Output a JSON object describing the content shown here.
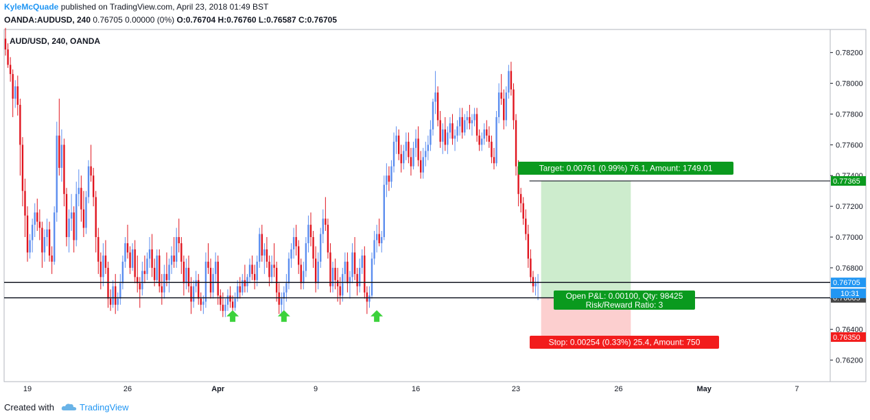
{
  "header": {
    "author": "KyleMcQuade",
    "published_text": " published on TradingView.com, April 23, 2018 01:49 BST",
    "symbol": "OANDA:AUDUSD, 240",
    "quote": " 0.76705 0.00000 (0%) ",
    "open": "O:0.76704",
    "high": "H:0.76760",
    "low": "L:0.76587",
    "close": "C:0.76705"
  },
  "chart_data": {
    "type": "candlestick",
    "title": "AUD/USD, 240, OANDA",
    "y_ticks": [
      "0.78200",
      "0.78000",
      "0.77800",
      "0.77600",
      "0.77400",
      "0.77200",
      "0.77000",
      "0.76800",
      "0.76600",
      "0.76400",
      "0.76200"
    ],
    "y_tick_values": [
      0.782,
      0.78,
      0.778,
      0.776,
      0.774,
      0.772,
      0.77,
      0.768,
      0.766,
      0.764,
      0.762
    ],
    "ylim": [
      0.7606,
      0.7835
    ],
    "x_ticks": [
      "19",
      "26",
      "Apr",
      "9",
      "16",
      "23",
      "26",
      "May",
      "7"
    ],
    "x_tick_bars": [
      9,
      50,
      87,
      127,
      168,
      209,
      251,
      286,
      324
    ],
    "bar_count": 330,
    "colors": {
      "up": "#5b8def",
      "down": "#e0141e",
      "target_fill": "#cdeccd",
      "stop_fill": "#fccfcf",
      "green_label": "#0a9a1e",
      "red_label": "#f21c1c"
    },
    "horizontal_lines": [
      {
        "price": 0.76705,
        "label": "0.76705",
        "label_color": "#2196f3"
      },
      {
        "price": 0.76605,
        "label": "0.76605",
        "label_color": "#444444"
      }
    ],
    "price_labels": [
      {
        "price": 0.77365,
        "label": "0.77365",
        "color": "#0a9a1e"
      },
      {
        "price": 0.7635,
        "label": "0.76350",
        "color": "#f21c1c"
      }
    ],
    "countdown": "10:31",
    "position": {
      "entry": 0.76605,
      "target": 0.77365,
      "stop": 0.7635,
      "start_bar": 219,
      "end_bar": 256,
      "target_text": "Target: 0.00761 (0.99%) 76.1, Amount: 1749.01",
      "open_text": "Open P&L: 0.00100, Qty: 98425",
      "rr_text": "Risk/Reward Ratio: 3",
      "stop_text": "Stop: 0.00254 (0.33%) 25.4, Amount: 750"
    },
    "arrows": [
      {
        "bar": 93,
        "price": 0.7648
      },
      {
        "bar": 114,
        "price": 0.7648
      },
      {
        "bar": 152,
        "price": 0.7648
      }
    ],
    "candles": [
      [
        0.7829,
        0.7836,
        0.7818,
        0.7822
      ],
      [
        0.7822,
        0.7826,
        0.781,
        0.7812
      ],
      [
        0.7812,
        0.7817,
        0.7801,
        0.7806
      ],
      [
        0.7806,
        0.7809,
        0.7778,
        0.779
      ],
      [
        0.779,
        0.7802,
        0.7784,
        0.7798
      ],
      [
        0.7798,
        0.7805,
        0.7779,
        0.7786
      ],
      [
        0.7786,
        0.779,
        0.774,
        0.776
      ],
      [
        0.776,
        0.7765,
        0.772,
        0.773
      ],
      [
        0.773,
        0.7738,
        0.77,
        0.7714
      ],
      [
        0.7714,
        0.772,
        0.7684,
        0.769
      ],
      [
        0.769,
        0.7702,
        0.7686,
        0.7698
      ],
      [
        0.7698,
        0.7712,
        0.769,
        0.7708
      ],
      [
        0.7708,
        0.7722,
        0.77,
        0.7716
      ],
      [
        0.7716,
        0.7725,
        0.7704,
        0.771
      ],
      [
        0.771,
        0.7718,
        0.7698,
        0.7706
      ],
      [
        0.7706,
        0.771,
        0.768,
        0.769
      ],
      [
        0.769,
        0.7705,
        0.7684,
        0.77
      ],
      [
        0.77,
        0.7712,
        0.7694,
        0.7705
      ],
      [
        0.7705,
        0.771,
        0.7684,
        0.7688
      ],
      [
        0.7688,
        0.7694,
        0.7676,
        0.7684
      ],
      [
        0.7684,
        0.772,
        0.7682,
        0.7716
      ],
      [
        0.7716,
        0.7775,
        0.771,
        0.7766
      ],
      [
        0.7766,
        0.779,
        0.774,
        0.7745
      ],
      [
        0.7745,
        0.777,
        0.7736,
        0.776
      ],
      [
        0.776,
        0.7764,
        0.772,
        0.7728
      ],
      [
        0.7728,
        0.7732,
        0.7694,
        0.77
      ],
      [
        0.77,
        0.7718,
        0.769,
        0.7712
      ],
      [
        0.7712,
        0.7728,
        0.7704,
        0.7716
      ],
      [
        0.7716,
        0.772,
        0.769,
        0.7698
      ],
      [
        0.7698,
        0.7736,
        0.7694,
        0.7728
      ],
      [
        0.7728,
        0.7744,
        0.772,
        0.7732
      ],
      [
        0.7732,
        0.774,
        0.771,
        0.7718
      ],
      [
        0.7718,
        0.773,
        0.77,
        0.7706
      ],
      [
        0.7706,
        0.773,
        0.7702,
        0.7726
      ],
      [
        0.7726,
        0.775,
        0.7722,
        0.7746
      ],
      [
        0.7746,
        0.776,
        0.7736,
        0.774
      ],
      [
        0.774,
        0.7745,
        0.772,
        0.7726
      ],
      [
        0.7726,
        0.773,
        0.769,
        0.77
      ],
      [
        0.77,
        0.7706,
        0.7676,
        0.7684
      ],
      [
        0.7684,
        0.769,
        0.7666,
        0.7674
      ],
      [
        0.7674,
        0.7696,
        0.7668,
        0.7688
      ],
      [
        0.7688,
        0.7698,
        0.7676,
        0.768
      ],
      [
        0.768,
        0.7684,
        0.7654,
        0.766
      ],
      [
        0.766,
        0.7666,
        0.7652,
        0.7656
      ],
      [
        0.7656,
        0.7672,
        0.7654,
        0.7668
      ],
      [
        0.7668,
        0.7676,
        0.765,
        0.7656
      ],
      [
        0.7656,
        0.7664,
        0.7652,
        0.766
      ],
      [
        0.766,
        0.7676,
        0.7656,
        0.767
      ],
      [
        0.767,
        0.7688,
        0.7666,
        0.7684
      ],
      [
        0.7684,
        0.77,
        0.768,
        0.7696
      ],
      [
        0.7696,
        0.7708,
        0.7686,
        0.769
      ],
      [
        0.769,
        0.7694,
        0.7676,
        0.768
      ],
      [
        0.768,
        0.7696,
        0.7678,
        0.7692
      ],
      [
        0.7692,
        0.7698,
        0.767,
        0.7674
      ],
      [
        0.7674,
        0.7688,
        0.7664,
        0.767
      ],
      [
        0.767,
        0.7674,
        0.7654,
        0.7666
      ],
      [
        0.7666,
        0.7684,
        0.7662,
        0.7678
      ],
      [
        0.7678,
        0.7688,
        0.767,
        0.7676
      ],
      [
        0.7676,
        0.769,
        0.7672,
        0.7686
      ],
      [
        0.7686,
        0.77,
        0.768,
        0.7692
      ],
      [
        0.7692,
        0.7702,
        0.7674,
        0.768
      ],
      [
        0.768,
        0.7686,
        0.7668,
        0.7672
      ],
      [
        0.7672,
        0.7692,
        0.767,
        0.7688
      ],
      [
        0.7688,
        0.7692,
        0.7664,
        0.7668
      ],
      [
        0.7668,
        0.7676,
        0.7656,
        0.7664
      ],
      [
        0.7664,
        0.7682,
        0.766,
        0.7676
      ],
      [
        0.7676,
        0.769,
        0.7668,
        0.7672
      ],
      [
        0.7672,
        0.7686,
        0.7664,
        0.7682
      ],
      [
        0.7682,
        0.7694,
        0.7676,
        0.7688
      ],
      [
        0.7688,
        0.77,
        0.768,
        0.7684
      ],
      [
        0.7684,
        0.7706,
        0.768,
        0.77
      ],
      [
        0.77,
        0.7712,
        0.769,
        0.7696
      ],
      [
        0.7696,
        0.77,
        0.7676,
        0.7684
      ],
      [
        0.7684,
        0.7688,
        0.7662,
        0.767
      ],
      [
        0.767,
        0.7686,
        0.7666,
        0.768
      ],
      [
        0.768,
        0.7688,
        0.7664,
        0.7668
      ],
      [
        0.7668,
        0.7674,
        0.765,
        0.7658
      ],
      [
        0.7658,
        0.7672,
        0.7654,
        0.7668
      ],
      [
        0.7668,
        0.7678,
        0.7664,
        0.7672
      ],
      [
        0.7672,
        0.7676,
        0.7656,
        0.766
      ],
      [
        0.766,
        0.7664,
        0.7652,
        0.7656
      ],
      [
        0.7656,
        0.7662,
        0.765,
        0.7658
      ],
      [
        0.7658,
        0.769,
        0.7654,
        0.7684
      ],
      [
        0.7684,
        0.7696,
        0.7676,
        0.768
      ],
      [
        0.768,
        0.7686,
        0.766,
        0.7664
      ],
      [
        0.7664,
        0.768,
        0.766,
        0.7676
      ],
      [
        0.7676,
        0.769,
        0.767,
        0.7684
      ],
      [
        0.7684,
        0.7688,
        0.7656,
        0.7662
      ],
      [
        0.7662,
        0.7666,
        0.7652,
        0.7656
      ],
      [
        0.7656,
        0.7664,
        0.7648,
        0.7652
      ],
      [
        0.7652,
        0.766,
        0.7648,
        0.7656
      ],
      [
        0.7656,
        0.7666,
        0.7652,
        0.7662
      ],
      [
        0.7662,
        0.7668,
        0.7654,
        0.7658
      ],
      [
        0.7658,
        0.7662,
        0.765,
        0.7654
      ],
      [
        0.7654,
        0.7664,
        0.7652,
        0.766
      ],
      [
        0.766,
        0.7672,
        0.7658,
        0.7668
      ],
      [
        0.7668,
        0.7674,
        0.766,
        0.7664
      ],
      [
        0.7664,
        0.7676,
        0.7662,
        0.7672
      ],
      [
        0.7672,
        0.7682,
        0.7664,
        0.7668
      ],
      [
        0.7668,
        0.7676,
        0.7664,
        0.7674
      ],
      [
        0.7674,
        0.7686,
        0.767,
        0.7682
      ],
      [
        0.7682,
        0.7688,
        0.7672,
        0.7676
      ],
      [
        0.7676,
        0.7682,
        0.7666,
        0.7672
      ],
      [
        0.7672,
        0.7688,
        0.7668,
        0.7684
      ],
      [
        0.7684,
        0.7706,
        0.768,
        0.7702
      ],
      [
        0.7702,
        0.7708,
        0.7684,
        0.7688
      ],
      [
        0.7688,
        0.7696,
        0.7676,
        0.7692
      ],
      [
        0.7692,
        0.77,
        0.768,
        0.7684
      ],
      [
        0.7684,
        0.7688,
        0.7668,
        0.7674
      ],
      [
        0.7674,
        0.7688,
        0.767,
        0.7682
      ],
      [
        0.7682,
        0.7696,
        0.7674,
        0.768
      ],
      [
        0.768,
        0.7684,
        0.7658,
        0.7664
      ],
      [
        0.7664,
        0.767,
        0.765,
        0.7656
      ],
      [
        0.7656,
        0.7664,
        0.765,
        0.766
      ],
      [
        0.766,
        0.7668,
        0.7652,
        0.7664
      ],
      [
        0.7664,
        0.7676,
        0.7658,
        0.767
      ],
      [
        0.767,
        0.769,
        0.7666,
        0.7686
      ],
      [
        0.7686,
        0.7696,
        0.768,
        0.7692
      ],
      [
        0.7692,
        0.7706,
        0.7686,
        0.77
      ],
      [
        0.77,
        0.7708,
        0.7688,
        0.7694
      ],
      [
        0.7694,
        0.7698,
        0.7676,
        0.7682
      ],
      [
        0.7682,
        0.7686,
        0.7666,
        0.767
      ],
      [
        0.767,
        0.7684,
        0.7666,
        0.7678
      ],
      [
        0.7678,
        0.77,
        0.7674,
        0.7696
      ],
      [
        0.7696,
        0.7714,
        0.769,
        0.7708
      ],
      [
        0.7708,
        0.7716,
        0.7694,
        0.77
      ],
      [
        0.77,
        0.7704,
        0.768,
        0.7686
      ],
      [
        0.7686,
        0.7694,
        0.7664,
        0.767
      ],
      [
        0.767,
        0.769,
        0.7666,
        0.7684
      ],
      [
        0.7684,
        0.7706,
        0.768,
        0.7702
      ],
      [
        0.7702,
        0.7718,
        0.7696,
        0.7712
      ],
      [
        0.7712,
        0.7726,
        0.7704,
        0.7708
      ],
      [
        0.7708,
        0.7712,
        0.7686,
        0.769
      ],
      [
        0.769,
        0.7696,
        0.7664,
        0.7668
      ],
      [
        0.7668,
        0.7684,
        0.7664,
        0.768
      ],
      [
        0.768,
        0.7686,
        0.7666,
        0.7672
      ],
      [
        0.7672,
        0.768,
        0.7658,
        0.7668
      ],
      [
        0.7668,
        0.7674,
        0.7656,
        0.7662
      ],
      [
        0.7662,
        0.768,
        0.7658,
        0.7676
      ],
      [
        0.7676,
        0.769,
        0.767,
        0.7684
      ],
      [
        0.7684,
        0.769,
        0.7664,
        0.767
      ],
      [
        0.767,
        0.7678,
        0.766,
        0.7674
      ],
      [
        0.7674,
        0.7696,
        0.767,
        0.769
      ],
      [
        0.769,
        0.77,
        0.7672,
        0.7676
      ],
      [
        0.7676,
        0.768,
        0.7662,
        0.7668
      ],
      [
        0.7668,
        0.7686,
        0.7664,
        0.768
      ],
      [
        0.768,
        0.7692,
        0.7676,
        0.7688
      ],
      [
        0.7688,
        0.7694,
        0.766,
        0.7664
      ],
      [
        0.7664,
        0.7668,
        0.765,
        0.7658
      ],
      [
        0.7658,
        0.7668,
        0.7654,
        0.7662
      ],
      [
        0.7662,
        0.769,
        0.766,
        0.7686
      ],
      [
        0.7686,
        0.7704,
        0.7682,
        0.7698
      ],
      [
        0.7698,
        0.7708,
        0.769,
        0.7702
      ],
      [
        0.7702,
        0.7712,
        0.7694,
        0.7696
      ],
      [
        0.7696,
        0.7704,
        0.769,
        0.77
      ],
      [
        0.77,
        0.774,
        0.7698,
        0.7734
      ],
      [
        0.7734,
        0.7748,
        0.7726,
        0.774
      ],
      [
        0.774,
        0.7746,
        0.773,
        0.7736
      ],
      [
        0.7736,
        0.775,
        0.7732,
        0.7746
      ],
      [
        0.7746,
        0.7768,
        0.7742,
        0.7762
      ],
      [
        0.7762,
        0.7772,
        0.7754,
        0.7766
      ],
      [
        0.7766,
        0.777,
        0.775,
        0.7754
      ],
      [
        0.7754,
        0.776,
        0.7742,
        0.7748
      ],
      [
        0.7748,
        0.776,
        0.7744,
        0.7756
      ],
      [
        0.7756,
        0.7768,
        0.775,
        0.7762
      ],
      [
        0.7762,
        0.7768,
        0.7748,
        0.7752
      ],
      [
        0.7752,
        0.7758,
        0.774,
        0.7746
      ],
      [
        0.7746,
        0.7762,
        0.7744,
        0.7758
      ],
      [
        0.7758,
        0.777,
        0.7752,
        0.7764
      ],
      [
        0.7764,
        0.7772,
        0.7746,
        0.775
      ],
      [
        0.775,
        0.7756,
        0.7738,
        0.7742
      ],
      [
        0.7742,
        0.7758,
        0.7738,
        0.7752
      ],
      [
        0.7752,
        0.7762,
        0.7746,
        0.7756
      ],
      [
        0.7756,
        0.7766,
        0.775,
        0.776
      ],
      [
        0.776,
        0.7776,
        0.7756,
        0.777
      ],
      [
        0.777,
        0.779,
        0.7766,
        0.7788
      ],
      [
        0.7788,
        0.7808,
        0.778,
        0.7794
      ],
      [
        0.7794,
        0.7798,
        0.7772,
        0.7776
      ],
      [
        0.7776,
        0.7782,
        0.7758,
        0.7762
      ],
      [
        0.7762,
        0.7774,
        0.7754,
        0.777
      ],
      [
        0.777,
        0.7778,
        0.7756,
        0.776
      ],
      [
        0.776,
        0.7772,
        0.7754,
        0.7768
      ],
      [
        0.7768,
        0.7778,
        0.7764,
        0.7774
      ],
      [
        0.7774,
        0.778,
        0.776,
        0.7764
      ],
      [
        0.7764,
        0.777,
        0.7756,
        0.7766
      ],
      [
        0.7766,
        0.7776,
        0.7762,
        0.7772
      ],
      [
        0.7772,
        0.7784,
        0.7766,
        0.7778
      ],
      [
        0.7778,
        0.7784,
        0.7764,
        0.7768
      ],
      [
        0.7768,
        0.778,
        0.7766,
        0.7776
      ],
      [
        0.7776,
        0.7782,
        0.777,
        0.7778
      ],
      [
        0.7778,
        0.7786,
        0.777,
        0.7774
      ],
      [
        0.7774,
        0.778,
        0.7766,
        0.7776
      ],
      [
        0.7776,
        0.7784,
        0.7772,
        0.778
      ],
      [
        0.778,
        0.7784,
        0.7762,
        0.7766
      ],
      [
        0.7766,
        0.777,
        0.7756,
        0.776
      ],
      [
        0.776,
        0.7768,
        0.7756,
        0.7764
      ],
      [
        0.7764,
        0.7774,
        0.776,
        0.777
      ],
      [
        0.777,
        0.7776,
        0.7762,
        0.7766
      ],
      [
        0.7766,
        0.7772,
        0.7758,
        0.7762
      ],
      [
        0.7762,
        0.7766,
        0.7748,
        0.7752
      ],
      [
        0.7752,
        0.7758,
        0.7744,
        0.7748
      ],
      [
        0.7748,
        0.7782,
        0.7746,
        0.7778
      ],
      [
        0.7778,
        0.78,
        0.7774,
        0.7794
      ],
      [
        0.7794,
        0.7806,
        0.7786,
        0.779
      ],
      [
        0.779,
        0.7796,
        0.777,
        0.7776
      ],
      [
        0.7776,
        0.7798,
        0.7772,
        0.7794
      ],
      [
        0.7794,
        0.7812,
        0.779,
        0.7808
      ],
      [
        0.7808,
        0.7814,
        0.7792,
        0.7796
      ],
      [
        0.7796,
        0.78,
        0.777,
        0.7776
      ],
      [
        0.7776,
        0.778,
        0.774,
        0.7746
      ],
      [
        0.7746,
        0.775,
        0.772,
        0.7728
      ],
      [
        0.7728,
        0.7732,
        0.7716,
        0.7722
      ],
      [
        0.7722,
        0.7726,
        0.7708,
        0.7712
      ],
      [
        0.7712,
        0.7718,
        0.7698,
        0.7702
      ],
      [
        0.7702,
        0.7708,
        0.768,
        0.7686
      ],
      [
        0.7686,
        0.7692,
        0.767,
        0.7674
      ],
      [
        0.7674,
        0.7678,
        0.7664,
        0.7668
      ],
      [
        0.7668,
        0.7674,
        0.7662,
        0.767
      ],
      [
        0.767,
        0.7676,
        0.7659,
        0.7671
      ]
    ]
  },
  "footer": {
    "created_with": "Created with",
    "brand": "TradingView"
  }
}
